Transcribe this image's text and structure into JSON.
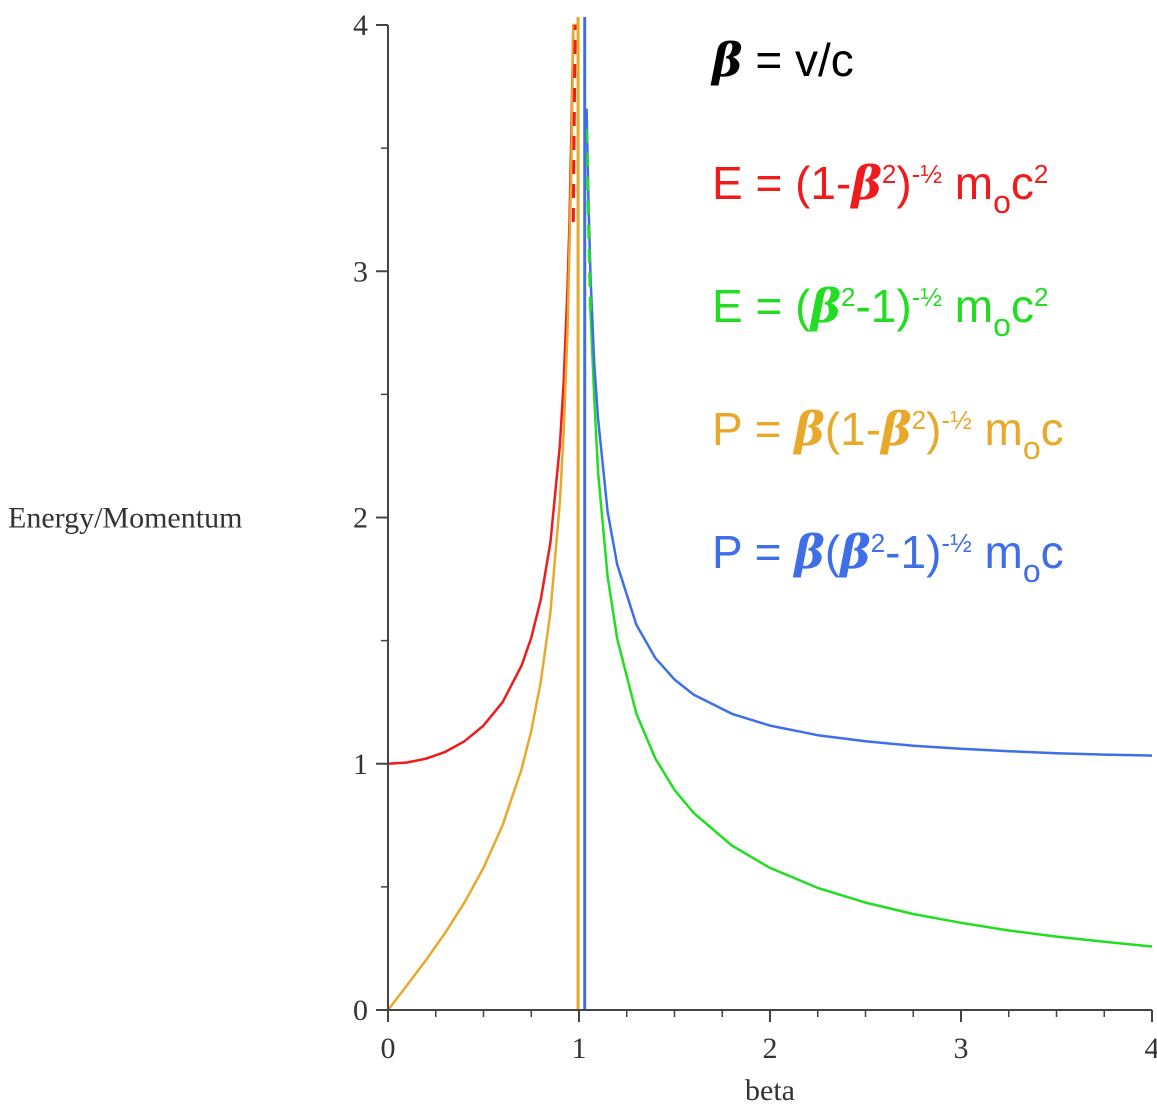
{
  "chart_data": {
    "type": "line",
    "xlabel": "beta",
    "ylabel": "Energy/Momentum",
    "xlim": [
      0,
      4
    ],
    "ylim": [
      0,
      4
    ],
    "x_ticks": [
      "0",
      "1",
      "2",
      "3",
      "4"
    ],
    "y_ticks": [
      "0",
      "1",
      "2",
      "3",
      "4"
    ],
    "grid": false,
    "legend": {
      "placement": "top-right",
      "definition": {
        "color": "#000000",
        "parts": [
          {
            "t": "β",
            "b": true
          },
          {
            "t": " = v/c"
          }
        ]
      },
      "entries": [
        {
          "series": "E_sub",
          "color": "#ee1c1c",
          "parts": [
            {
              "t": "E = (1-"
            },
            {
              "t": "β",
              "b": true
            },
            {
              "t": "2",
              "sup": true
            },
            {
              "t": ")"
            },
            {
              "t": "-½",
              "sup": true
            },
            {
              "t": " m"
            },
            {
              "t": "o",
              "sub": true
            },
            {
              "t": "c"
            },
            {
              "t": "2",
              "sup": true
            }
          ]
        },
        {
          "series": "E_super",
          "color": "#22dd22",
          "parts": [
            {
              "t": "E = ("
            },
            {
              "t": "β",
              "b": true
            },
            {
              "t": "2",
              "sup": true
            },
            {
              "t": "-1)"
            },
            {
              "t": "-½",
              "sup": true
            },
            {
              "t": " m"
            },
            {
              "t": "o",
              "sub": true
            },
            {
              "t": "c"
            },
            {
              "t": "2",
              "sup": true
            }
          ]
        },
        {
          "series": "P_sub",
          "color": "#e8a92a",
          "parts": [
            {
              "t": "P = "
            },
            {
              "t": "β",
              "b": true
            },
            {
              "t": "(1-"
            },
            {
              "t": "β",
              "b": true
            },
            {
              "t": "2",
              "sup": true
            },
            {
              "t": ")"
            },
            {
              "t": "-½",
              "sup": true
            },
            {
              "t": " m"
            },
            {
              "t": "o",
              "sub": true
            },
            {
              "t": "c"
            }
          ]
        },
        {
          "series": "P_super",
          "color": "#3f6fe8",
          "parts": [
            {
              "t": "P = "
            },
            {
              "t": "β",
              "b": true
            },
            {
              "t": "("
            },
            {
              "t": "β",
              "b": true
            },
            {
              "t": "2",
              "sup": true
            },
            {
              "t": "-1)"
            },
            {
              "t": "-½",
              "sup": true
            },
            {
              "t": " m"
            },
            {
              "t": "o",
              "sub": true
            },
            {
              "t": "c"
            }
          ]
        }
      ]
    },
    "series": [
      {
        "id": "E_sub",
        "color": "#ee1c1c",
        "dashed": false,
        "x": [
          0,
          0.1,
          0.2,
          0.3,
          0.4,
          0.5,
          0.6,
          0.7,
          0.75,
          0.8,
          0.85,
          0.9,
          0.92,
          0.94,
          0.95,
          0.96,
          0.97
        ],
        "y": [
          1,
          1.005,
          1.021,
          1.048,
          1.091,
          1.155,
          1.25,
          1.4,
          1.512,
          1.667,
          1.898,
          2.294,
          2.552,
          2.931,
          3.203,
          3.571,
          4.0
        ]
      },
      {
        "id": "P_sub",
        "color": "#e8a92a",
        "dashed": false,
        "x": [
          0,
          0.1,
          0.2,
          0.3,
          0.4,
          0.5,
          0.6,
          0.7,
          0.75,
          0.8,
          0.85,
          0.9,
          0.92,
          0.94,
          0.96,
          0.97,
          0.98,
          0.99,
          0.995
        ],
        "y": [
          0,
          0.101,
          0.204,
          0.314,
          0.436,
          0.577,
          0.75,
          0.98,
          1.134,
          1.333,
          1.614,
          2.065,
          2.347,
          2.755,
          3.429,
          4.0,
          4.0,
          4.0,
          4.0
        ]
      },
      {
        "id": "E_super",
        "color": "#22dd22",
        "dashed": false,
        "x": [
          1.06,
          1.08,
          1.1,
          1.15,
          1.2,
          1.3,
          1.4,
          1.5,
          1.6,
          1.8,
          2.0,
          2.25,
          2.5,
          2.75,
          3.0,
          3.25,
          3.5,
          3.75,
          4.0
        ],
        "y": [
          2.84,
          2.48,
          2.182,
          1.76,
          1.508,
          1.204,
          1.021,
          0.894,
          0.801,
          0.668,
          0.577,
          0.496,
          0.436,
          0.39,
          0.354,
          0.323,
          0.298,
          0.277,
          0.258
        ]
      },
      {
        "id": "P_super",
        "color": "#3f6fe8",
        "dashed": false,
        "x": [
          1.04,
          1.05,
          1.06,
          1.08,
          1.1,
          1.15,
          1.2,
          1.3,
          1.4,
          1.5,
          1.6,
          1.8,
          2.0,
          2.25,
          2.5,
          2.75,
          3.0,
          3.25,
          3.5,
          3.75,
          4.0
        ],
        "y": [
          3.66,
          3.28,
          2.98,
          2.62,
          2.4,
          2.024,
          1.809,
          1.565,
          1.429,
          1.342,
          1.281,
          1.203,
          1.155,
          1.116,
          1.091,
          1.073,
          1.061,
          1.051,
          1.043,
          1.037,
          1.033
        ]
      },
      {
        "id": "E_sub_dash",
        "color": "#ee1c1c",
        "dashed": true,
        "x": [
          0.97,
          0.975,
          0.98
        ],
        "y": [
          3.2,
          3.6,
          4.0
        ]
      },
      {
        "id": "E_super_dash",
        "color": "#22dd22",
        "dashed": true,
        "x": [
          1.06,
          1.05,
          1.04
        ],
        "y": [
          2.84,
          3.2,
          3.6
        ]
      }
    ],
    "asymptotes": [
      {
        "id": "P_sub_vertical",
        "color": "#e8a92a",
        "x": 0.995
      },
      {
        "id": "P_super_vertical",
        "color": "#3f6fe8",
        "x": 1.03
      }
    ]
  }
}
